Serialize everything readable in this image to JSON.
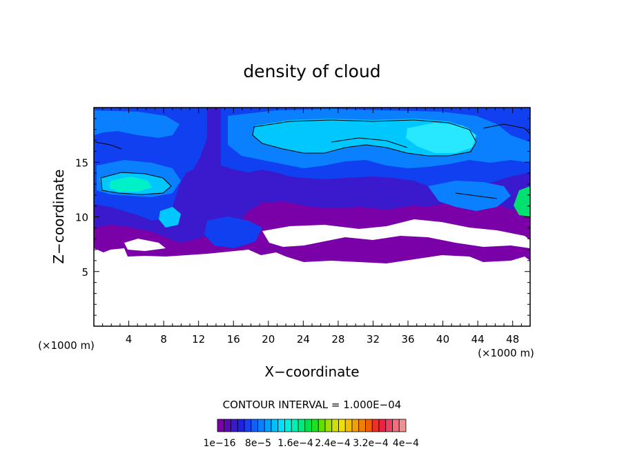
{
  "chart_data": {
    "type": "heatmap",
    "title": "density of cloud",
    "xlabel": "X−coordinate",
    "ylabel": "Z−coordinate",
    "x_unit_left": "(×1000 m)",
    "x_unit_right": "(×1000 m)",
    "xlim": [
      0,
      50
    ],
    "ylim": [
      0,
      20
    ],
    "xticks": [
      4,
      8,
      12,
      16,
      20,
      24,
      28,
      32,
      36,
      40,
      44,
      48
    ],
    "yticks": [
      5,
      10,
      15
    ],
    "contour_interval_label": "CONTOUR INTERVAL = 1.000E−04",
    "colorbar": {
      "labels": [
        "1e−16",
        "8e−5",
        "1.6e−4",
        "2.4e−4",
        "3.2e−4",
        "4e−4"
      ],
      "colors": [
        "#7a00a8",
        "#5a0ab4",
        "#3a1acc",
        "#2020e0",
        "#1840f0",
        "#1060f5",
        "#0a80ff",
        "#00a0ff",
        "#00c0ff",
        "#00e0ff",
        "#00f0e0",
        "#00f0b0",
        "#00e880",
        "#00e050",
        "#20e020",
        "#60e000",
        "#a0e000",
        "#d0e000",
        "#f0e000",
        "#f0c000",
        "#f0a000",
        "#f08000",
        "#f06000",
        "#f03020",
        "#f02040",
        "#f04060",
        "#f07080",
        "#f09090"
      ]
    },
    "cloud_base_z": 6.2,
    "cloud_top_z": 20
  }
}
